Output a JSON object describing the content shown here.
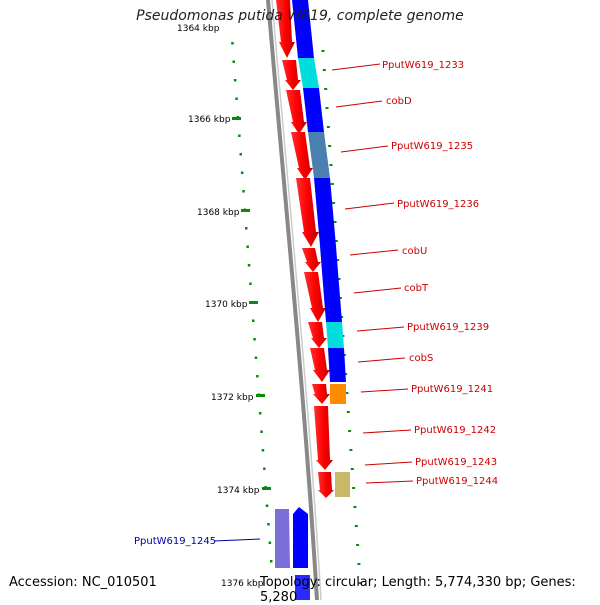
{
  "title": "Pseudomonas putida W619, complete genome",
  "footer": {
    "accession_label": "Accession:",
    "accession_value": "NC_010501",
    "topology_label": "Topology:",
    "topology_value": "circular",
    "length_label": "Length:",
    "length_value": "5,774,330 bp",
    "genes_label": "Genes:",
    "genes_value": "5,280"
  },
  "ticks": [
    "1364 kbp",
    "1366 kbp",
    "1368 kbp",
    "1370 kbp",
    "1372 kbp",
    "1374 kbp",
    "1376 kbp"
  ],
  "gene_labels": [
    {
      "text": "PputW619_1233",
      "color": "#cc0000"
    },
    {
      "text": "cobD",
      "color": "#cc0000"
    },
    {
      "text": "PputW619_1235",
      "color": "#cc0000"
    },
    {
      "text": "PputW619_1236",
      "color": "#cc0000"
    },
    {
      "text": "cobU",
      "color": "#cc0000"
    },
    {
      "text": "cobT",
      "color": "#cc0000"
    },
    {
      "text": "PputW619_1239",
      "color": "#cc0000"
    },
    {
      "text": "cobS",
      "color": "#cc0000"
    },
    {
      "text": "PputW619_1241",
      "color": "#cc0000"
    },
    {
      "text": "PputW619_1242",
      "color": "#cc0000"
    },
    {
      "text": "PputW619_1243",
      "color": "#cc0000"
    },
    {
      "text": "PputW619_1244",
      "color": "#cc0000"
    },
    {
      "text": "PputW619_1245",
      "color": "#0000aa"
    }
  ],
  "colors": {
    "forward_strand": "#ff0000",
    "reverse_strand": "#0000ff",
    "cyan_feature": "#00dddd",
    "steel_feature": "#4a7fb0",
    "orange_feature": "#ff8c00",
    "khaki_feature": "#c8b86a",
    "purple_feature": "#7b6ed6",
    "tick_mark": "#0a8a0a",
    "backbone": "#888888"
  }
}
